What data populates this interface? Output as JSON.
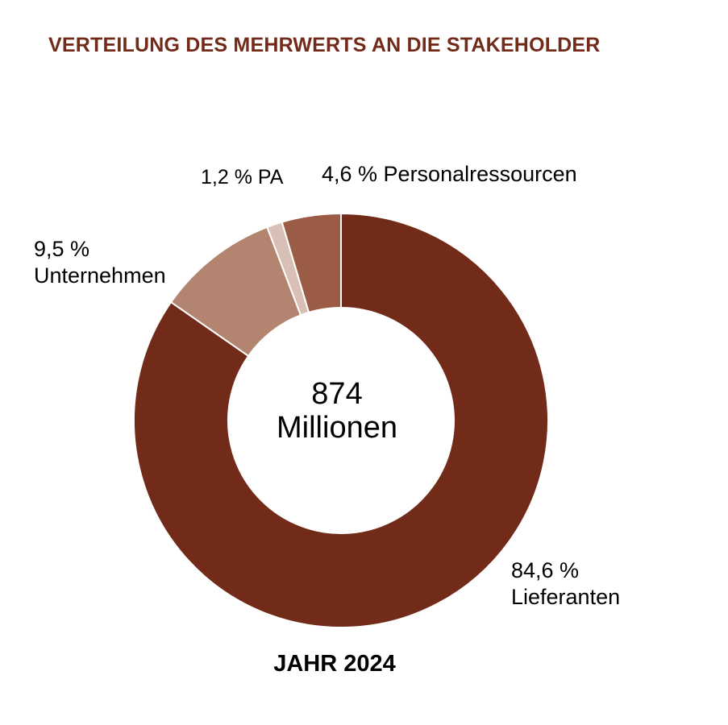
{
  "title": "VERTEILUNG DES MEHRWERTS AN DIE STAKEHOLDER",
  "center_value": "874",
  "center_unit": "Millionen",
  "footer": "JAHR 2024",
  "labels": {
    "lieferanten_pct": "84,6 %",
    "lieferanten_name": "Lieferanten",
    "unternehmen_pct": "9,5 %",
    "unternehmen_name": "Unternehmen",
    "pa": "1,2 % PA",
    "personal": "4,6 % Personalressourcen"
  },
  "chart_data": {
    "type": "pie",
    "title": "VERTEILUNG DES MEHRWERTS AN DIE STAKEHOLDER",
    "total": "874 Millionen",
    "year": "JAHR 2024",
    "slices": [
      {
        "name": "Lieferanten",
        "value": 84.6,
        "color": "#722b19"
      },
      {
        "name": "Unternehmen",
        "value": 9.5,
        "color": "#b3846f"
      },
      {
        "name": "PA",
        "value": 1.2,
        "color": "#d8c0b6"
      },
      {
        "name": "Personalressourcen",
        "value": 4.6,
        "color": "#9b5c45"
      }
    ]
  }
}
